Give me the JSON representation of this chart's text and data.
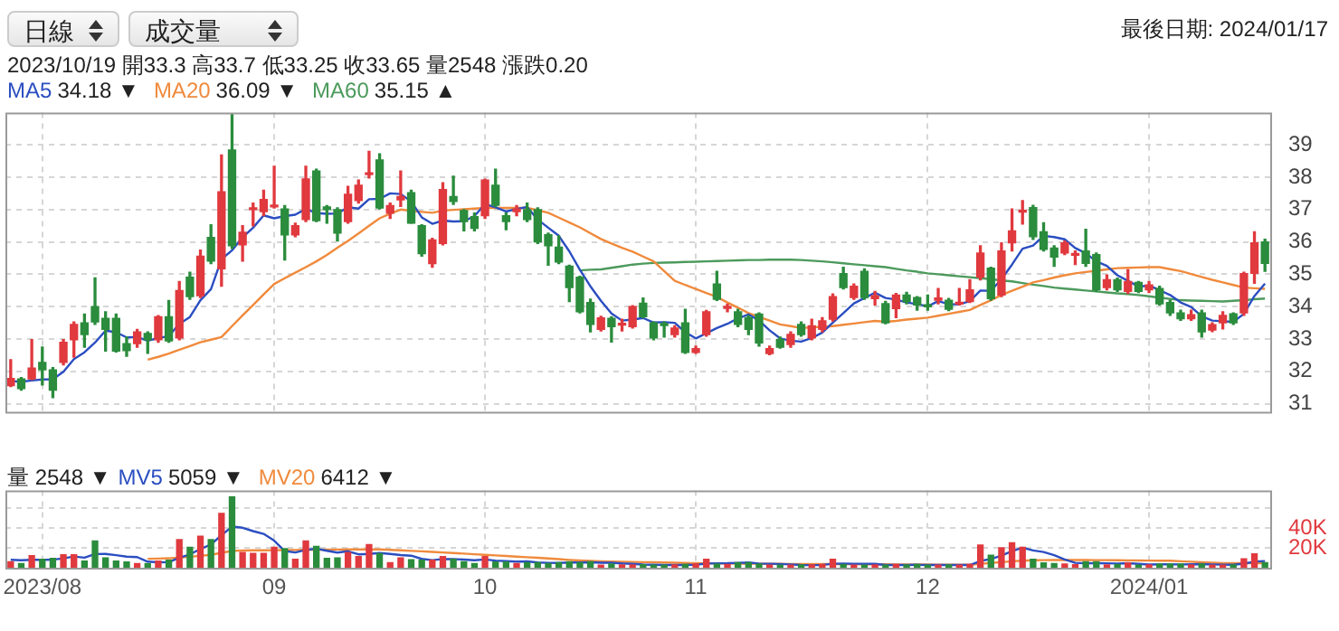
{
  "chart_data": [
    {
      "type": "candlestick",
      "categories": [
        null,
        null,
        null,
        "2023/08",
        null,
        null,
        null,
        null,
        null,
        null,
        null,
        null,
        null,
        null,
        null,
        null,
        null,
        null,
        null,
        null,
        null,
        null,
        null,
        null,
        null,
        "09",
        null,
        null,
        null,
        null,
        null,
        null,
        null,
        null,
        null,
        null,
        null,
        null,
        null,
        null,
        null,
        null,
        null,
        null,
        null,
        "10",
        null,
        null,
        null,
        null,
        null,
        null,
        null,
        null,
        null,
        null,
        null,
        null,
        null,
        null,
        null,
        null,
        null,
        null,
        null,
        "11",
        null,
        null,
        null,
        null,
        null,
        null,
        null,
        null,
        null,
        null,
        null,
        null,
        null,
        null,
        null,
        null,
        null,
        null,
        null,
        null,
        null,
        "12",
        null,
        null,
        null,
        null,
        null,
        null,
        null,
        null,
        null,
        null,
        null,
        null,
        null,
        null,
        null,
        null,
        null,
        null,
        null,
        null,
        "2024/01",
        null,
        null,
        null,
        null,
        null,
        null,
        null,
        null,
        null,
        null,
        null
      ],
      "ohlc": [
        [
          31.56,
          32.36,
          31.53,
          31.78
        ],
        [
          31.77,
          31.81,
          31.42,
          31.47
        ],
        [
          31.77,
          32.98,
          31.75,
          32.1
        ],
        [
          32.28,
          32.75,
          31.58,
          32.05
        ],
        [
          32.05,
          32.12,
          31.19,
          31.42
        ],
        [
          32.28,
          32.98,
          32.2,
          32.9
        ],
        [
          32.98,
          33.53,
          32.44,
          33.45
        ],
        [
          33.5,
          33.77,
          32.75,
          33.14
        ],
        [
          34.0,
          34.89,
          33.45,
          33.53
        ],
        [
          33.64,
          33.84,
          32.63,
          33.3
        ],
        [
          33.64,
          33.77,
          32.6,
          32.63
        ],
        [
          32.86,
          33.06,
          32.47,
          32.64
        ],
        [
          32.86,
          33.3,
          32.75,
          33.22
        ],
        [
          33.17,
          33.22,
          32.56,
          32.98
        ],
        [
          32.98,
          33.72,
          32.9,
          33.69
        ],
        [
          33.69,
          34.19,
          32.9,
          32.94
        ],
        [
          33.03,
          34.78,
          32.98,
          34.5
        ],
        [
          34.91,
          35.06,
          34.23,
          34.31
        ],
        [
          34.34,
          35.75,
          34.28,
          35.56
        ],
        [
          36.14,
          36.53,
          35.33,
          35.41
        ],
        [
          35.17,
          38.69,
          34.63,
          37.55
        ],
        [
          38.84,
          39.94,
          35.8,
          35.88
        ],
        [
          35.91,
          36.5,
          35.41,
          36.3
        ],
        [
          37.0,
          37.2,
          36.5,
          37.05
        ],
        [
          36.94,
          37.6,
          36.81,
          37.31
        ],
        [
          37.08,
          38.34,
          37.05,
          37.12
        ],
        [
          37.02,
          37.12,
          35.44,
          36.22
        ],
        [
          36.22,
          36.58,
          36.16,
          36.5
        ],
        [
          36.69,
          38.34,
          36.63,
          37.95
        ],
        [
          38.19,
          38.25,
          36.63,
          36.66
        ],
        [
          37.08,
          37.12,
          36.58,
          37.0
        ],
        [
          37.0,
          37.05,
          36.03,
          36.27
        ],
        [
          36.63,
          37.72,
          36.58,
          37.47
        ],
        [
          37.28,
          37.91,
          37.2,
          37.75
        ],
        [
          38.08,
          38.8,
          37.98,
          38.1
        ],
        [
          38.53,
          38.72,
          37.02,
          37.05
        ],
        [
          36.89,
          37.2,
          36.73,
          37.12
        ],
        [
          37.3,
          38.19,
          37.1,
          37.4
        ],
        [
          37.52,
          37.6,
          36.58,
          36.58
        ],
        [
          36.5,
          36.53,
          35.56,
          35.64
        ],
        [
          35.33,
          36.11,
          35.22,
          36.06
        ],
        [
          35.95,
          37.83,
          35.91,
          37.62
        ],
        [
          37.4,
          38.03,
          37.16,
          37.25
        ],
        [
          36.97,
          37.0,
          36.34,
          36.63
        ],
        [
          36.78,
          36.89,
          36.34,
          36.42
        ],
        [
          36.81,
          37.94,
          36.73,
          37.91
        ],
        [
          37.75,
          38.25,
          37.09,
          37.13
        ],
        [
          36.81,
          36.89,
          36.38,
          36.63
        ],
        [
          36.94,
          37.12,
          36.81,
          37.02
        ],
        [
          37.0,
          37.2,
          36.63,
          36.69
        ],
        [
          37.0,
          37.05,
          35.95,
          36.0
        ],
        [
          36.22,
          36.27,
          35.28,
          35.88
        ],
        [
          35.84,
          36.19,
          35.33,
          35.38
        ],
        [
          35.25,
          35.28,
          34.16,
          34.59
        ],
        [
          34.91,
          34.94,
          33.81,
          33.84
        ],
        [
          34.13,
          34.23,
          33.22,
          33.45
        ],
        [
          33.3,
          33.7,
          33.25,
          33.65
        ],
        [
          33.64,
          33.69,
          32.91,
          33.38
        ],
        [
          33.43,
          33.61,
          33.25,
          33.47
        ],
        [
          33.38,
          34.03,
          33.34,
          34.0
        ],
        [
          34.11,
          34.27,
          33.66,
          33.69
        ],
        [
          33.5,
          33.53,
          32.98,
          33.03
        ],
        [
          33.45,
          33.53,
          33.06,
          33.42
        ],
        [
          33.14,
          33.41,
          33.06,
          33.34
        ],
        [
          33.5,
          33.92,
          32.56,
          32.59
        ],
        [
          32.59,
          32.78,
          32.56,
          32.7
        ],
        [
          33.14,
          33.88,
          33.09,
          33.84
        ],
        [
          34.7,
          35.09,
          34.19,
          34.23
        ],
        [
          33.95,
          34.08,
          33.84,
          34.0
        ],
        [
          33.84,
          33.92,
          33.38,
          33.45
        ],
        [
          33.66,
          33.72,
          33.14,
          33.3
        ],
        [
          33.77,
          33.81,
          32.78,
          32.88
        ],
        [
          32.55,
          32.78,
          32.52,
          32.7
        ],
        [
          32.98,
          33.06,
          32.72,
          32.75
        ],
        [
          32.83,
          33.22,
          32.75,
          33.14
        ],
        [
          33.45,
          33.53,
          33.09,
          33.14
        ],
        [
          33.03,
          33.61,
          32.98,
          33.41
        ],
        [
          33.3,
          33.66,
          33.22,
          33.56
        ],
        [
          33.61,
          34.39,
          33.56,
          34.31
        ],
        [
          35.02,
          35.22,
          34.55,
          34.59
        ],
        [
          34.28,
          34.7,
          34.23,
          34.63
        ],
        [
          35.09,
          35.17,
          34.23,
          34.28
        ],
        [
          34.25,
          34.47,
          34.05,
          34.34
        ],
        [
          34.09,
          34.16,
          33.47,
          33.5
        ],
        [
          33.94,
          34.41,
          33.66,
          34.36
        ],
        [
          34.36,
          34.44,
          34.09,
          34.16
        ],
        [
          34.28,
          34.31,
          33.89,
          34.05
        ],
        [
          34.05,
          34.36,
          33.89,
          34.0
        ],
        [
          34.2,
          34.56,
          34.09,
          34.27
        ],
        [
          34.2,
          34.25,
          33.88,
          33.92
        ],
        [
          34.08,
          34.56,
          34.05,
          34.12
        ],
        [
          34.16,
          34.83,
          34.13,
          34.52
        ],
        [
          34.91,
          35.88,
          34.83,
          35.66
        ],
        [
          35.19,
          35.22,
          34.2,
          34.25
        ],
        [
          34.36,
          35.97,
          34.31,
          35.72
        ],
        [
          35.97,
          37.02,
          35.72,
          36.34
        ],
        [
          36.92,
          37.28,
          36.55,
          36.97
        ],
        [
          37.06,
          37.13,
          36.08,
          36.16
        ],
        [
          36.31,
          36.59,
          35.72,
          35.77
        ],
        [
          35.81,
          35.88,
          35.25,
          35.53
        ],
        [
          35.66,
          36.03,
          35.61,
          35.97
        ],
        [
          35.59,
          35.72,
          35.3,
          35.64
        ],
        [
          35.72,
          36.39,
          35.25,
          35.34
        ],
        [
          35.61,
          35.66,
          34.47,
          34.52
        ],
        [
          34.59,
          34.98,
          34.52,
          34.83
        ],
        [
          34.83,
          34.88,
          34.47,
          34.52
        ],
        [
          34.47,
          35.14,
          34.41,
          34.78
        ],
        [
          34.75,
          34.78,
          34.44,
          34.47
        ],
        [
          34.52,
          34.78,
          34.44,
          34.67
        ],
        [
          34.56,
          34.63,
          34.05,
          34.09
        ],
        [
          34.13,
          34.2,
          33.73,
          33.81
        ],
        [
          33.81,
          33.89,
          33.58,
          33.63
        ],
        [
          33.63,
          33.89,
          33.58,
          33.75
        ],
        [
          33.81,
          33.89,
          33.06,
          33.22
        ],
        [
          33.28,
          33.5,
          33.23,
          33.44
        ],
        [
          33.5,
          33.84,
          33.31,
          33.73
        ],
        [
          33.78,
          33.81,
          33.45,
          33.5
        ],
        [
          33.81,
          35.06,
          33.73,
          35.02
        ],
        [
          35.03,
          36.31,
          34.72,
          35.97
        ],
        [
          36.0,
          36.08,
          35.09,
          35.34
        ]
      ],
      "colors": [
        "#e0393e",
        "#2a8c3c",
        "#e0393e",
        "#2a8c3c",
        "#2a8c3c",
        "#e0393e",
        "#e0393e",
        "#2a8c3c",
        "#2a8c3c",
        "#2a8c3c",
        "#2a8c3c",
        "#2a8c3c",
        "#e0393e",
        "#2a8c3c",
        "#e0393e",
        "#2a8c3c",
        "#e0393e",
        "#2a8c3c",
        "#e0393e",
        "#2a8c3c",
        "#e0393e",
        "#2a8c3c",
        "#e0393e",
        "#e0393e",
        "#e0393e",
        "#e0393e",
        "#2a8c3c",
        "#e0393e",
        "#e0393e",
        "#2a8c3c",
        "#2a8c3c",
        "#2a8c3c",
        "#e0393e",
        "#e0393e",
        "#e0393e",
        "#2a8c3c",
        "#e0393e",
        "#e0393e",
        "#2a8c3c",
        "#2a8c3c",
        "#e0393e",
        "#e0393e",
        "#2a8c3c",
        "#2a8c3c",
        "#2a8c3c",
        "#e0393e",
        "#2a8c3c",
        "#2a8c3c",
        "#e0393e",
        "#2a8c3c",
        "#2a8c3c",
        "#2a8c3c",
        "#2a8c3c",
        "#2a8c3c",
        "#2a8c3c",
        "#2a8c3c",
        "#e0393e",
        "#2a8c3c",
        "#e0393e",
        "#e0393e",
        "#2a8c3c",
        "#2a8c3c",
        "#2a8c3c",
        "#e0393e",
        "#2a8c3c",
        "#e0393e",
        "#e0393e",
        "#2a8c3c",
        "#e0393e",
        "#2a8c3c",
        "#2a8c3c",
        "#2a8c3c",
        "#e0393e",
        "#2a8c3c",
        "#e0393e",
        "#2a8c3c",
        "#e0393e",
        "#e0393e",
        "#e0393e",
        "#2a8c3c",
        "#e0393e",
        "#2a8c3c",
        "#e0393e",
        "#2a8c3c",
        "#e0393e",
        "#2a8c3c",
        "#2a8c3c",
        "#2a8c3c",
        "#e0393e",
        "#2a8c3c",
        "#e0393e",
        "#e0393e",
        "#e0393e",
        "#2a8c3c",
        "#e0393e",
        "#e0393e",
        "#e0393e",
        "#2a8c3c",
        "#2a8c3c",
        "#2a8c3c",
        "#e0393e",
        "#e0393e",
        "#2a8c3c",
        "#2a8c3c",
        "#e0393e",
        "#2a8c3c",
        "#e0393e",
        "#2a8c3c",
        "#e0393e",
        "#2a8c3c",
        "#2a8c3c",
        "#2a8c3c",
        "#e0393e",
        "#2a8c3c",
        "#e0393e",
        "#e0393e",
        "#2a8c3c",
        "#e0393e",
        "#e0393e",
        "#2a8c3c"
      ],
      "series": [
        {
          "name": "MA5",
          "type": "line",
          "color": "#2b4ec1",
          "values": [
            31.7,
            31.68,
            31.72,
            31.75,
            31.76,
            31.99,
            32.38,
            32.59,
            32.89,
            33.26,
            33.21,
            33.05,
            33.06,
            32.95,
            33.03,
            33.09,
            33.47,
            33.68,
            34.2,
            34.54,
            35.47,
            35.74,
            36.14,
            36.44,
            36.82,
            36.73,
            36.8,
            36.84,
            37.02,
            36.89,
            36.87,
            36.88,
            37.07,
            37.03,
            37.32,
            37.33,
            37.5,
            37.48,
            37.25,
            36.76,
            36.56,
            36.66,
            36.63,
            36.64,
            36.8,
            37.17,
            37.07,
            36.94,
            37.02,
            37.08,
            36.69,
            36.44,
            36.19,
            35.71,
            35.14,
            34.63,
            34.18,
            33.79,
            33.57,
            33.6,
            33.65,
            33.51,
            33.52,
            33.5,
            33.21,
            33.02,
            33.18,
            33.34,
            33.47,
            33.64,
            33.76,
            33.57,
            33.27,
            33.02,
            32.95,
            32.92,
            33.03,
            33.2,
            33.51,
            33.8,
            34.1,
            34.27,
            34.43,
            34.27,
            34.22,
            34.13,
            34.08,
            34.01,
            34.17,
            34.08,
            34.07,
            34.17,
            34.5,
            34.49,
            34.85,
            35.3,
            35.79,
            35.89,
            36.19,
            36.15,
            36.08,
            35.81,
            35.65,
            35.4,
            35.26,
            34.97,
            34.8,
            34.62,
            34.65,
            34.51,
            34.36,
            34.13,
            33.99,
            33.7,
            33.57,
            33.55,
            33.53,
            33.78,
            34.33,
            34.71
          ]
        },
        {
          "name": "MA20",
          "type": "line",
          "color": "#f08a3c",
          "values": [
            null,
            null,
            null,
            null,
            null,
            null,
            null,
            null,
            null,
            null,
            null,
            null,
            null,
            32.36,
            32.45,
            32.55,
            32.67,
            32.78,
            32.9,
            32.98,
            33.06,
            33.4,
            33.73,
            34.05,
            34.38,
            34.7,
            34.88,
            35.05,
            35.22,
            35.4,
            35.6,
            35.82,
            36.03,
            36.26,
            36.5,
            36.73,
            36.87,
            37.0,
            36.96,
            36.93,
            36.9,
            36.97,
            36.99,
            37.01,
            37.03,
            37.05,
            37.05,
            37.05,
            37.05,
            37.05,
            36.98,
            36.9,
            36.75,
            36.6,
            36.45,
            36.27,
            36.09,
            35.95,
            35.82,
            35.7,
            35.55,
            35.4,
            35.1,
            34.8,
            34.67,
            34.55,
            34.42,
            34.3,
            34.13,
            33.97,
            33.8,
            33.68,
            33.57,
            33.45,
            33.4,
            33.34,
            33.36,
            33.38,
            33.4,
            33.44,
            33.48,
            33.52,
            33.56,
            33.53,
            33.56,
            33.6,
            33.63,
            33.66,
            33.72,
            33.78,
            33.84,
            33.9,
            34.05,
            34.2,
            34.36,
            34.49,
            34.62,
            34.75,
            34.82,
            34.9,
            34.97,
            35.03,
            35.07,
            35.11,
            35.15,
            35.19,
            35.2,
            35.21,
            35.22,
            35.22,
            35.16,
            35.1,
            35.01,
            34.92,
            34.83,
            34.75,
            34.67,
            34.59,
            34.57,
            34.55
          ]
        },
        {
          "name": "MA60",
          "type": "line",
          "color": "#4c9a5c",
          "values": [
            null,
            null,
            null,
            null,
            null,
            null,
            null,
            null,
            null,
            null,
            null,
            null,
            null,
            null,
            null,
            null,
            null,
            null,
            null,
            null,
            null,
            null,
            null,
            null,
            null,
            null,
            null,
            null,
            null,
            null,
            null,
            null,
            null,
            null,
            null,
            null,
            null,
            null,
            null,
            null,
            null,
            null,
            null,
            null,
            null,
            null,
            null,
            null,
            null,
            null,
            null,
            null,
            null,
            null,
            35.12,
            35.14,
            35.15,
            35.2,
            35.25,
            35.3,
            35.33,
            35.35,
            35.36,
            35.37,
            35.38,
            35.39,
            35.4,
            35.41,
            35.42,
            35.43,
            35.44,
            35.44,
            35.45,
            35.45,
            35.45,
            35.44,
            35.42,
            35.4,
            35.37,
            35.34,
            35.31,
            35.28,
            35.25,
            35.22,
            35.17,
            35.12,
            35.08,
            35.03,
            35.0,
            34.97,
            34.94,
            34.91,
            34.88,
            34.85,
            34.81,
            34.78,
            34.73,
            34.68,
            34.64,
            34.59,
            34.56,
            34.53,
            34.5,
            34.47,
            34.44,
            34.41,
            34.39,
            34.36,
            34.32,
            34.28,
            34.24,
            34.2,
            34.19,
            34.18,
            34.17,
            34.16,
            34.18,
            34.2,
            34.23,
            34.25
          ]
        }
      ],
      "ylim": [
        30.75,
        40
      ],
      "yticks": [
        31,
        32,
        33,
        34,
        35,
        36,
        37,
        38,
        39
      ],
      "grid": true,
      "tick_labels": "y",
      "legend": "top left",
      "marker": "none",
      "annotations": [
        "日線",
        "成交量",
        "最後日期: 2024/01/17",
        "2023/10/19 開33.3 高33.7 低33.25 收33.65 量2548 漲跌0.20",
        "34.18 ▼",
        "36.09 ▼",
        "35.15 ▲"
      ]
    },
    {
      "type": "bar",
      "categories": [
        null,
        null,
        null,
        "2023/08",
        null,
        null,
        null,
        null,
        null,
        null,
        null,
        null,
        null,
        null,
        null,
        null,
        null,
        null,
        null,
        null,
        null,
        null,
        null,
        null,
        null,
        "09",
        null,
        null,
        null,
        null,
        null,
        null,
        null,
        null,
        null,
        null,
        null,
        null,
        null,
        null,
        null,
        null,
        null,
        null,
        null,
        "10",
        null,
        null,
        null,
        null,
        null,
        null,
        null,
        null,
        null,
        null,
        null,
        null,
        null,
        null,
        null,
        null,
        null,
        null,
        null,
        "11",
        null,
        null,
        null,
        null,
        null,
        null,
        null,
        null,
        null,
        null,
        null,
        null,
        null,
        null,
        null,
        null,
        null,
        null,
        null,
        null,
        null,
        "12",
        null,
        null,
        null,
        null,
        null,
        null,
        null,
        null,
        null,
        null,
        null,
        null,
        null,
        null,
        null,
        null,
        null,
        null,
        null,
        null,
        "2024/01",
        null,
        null,
        null,
        null,
        null,
        null,
        null,
        null,
        null,
        null,
        null
      ],
      "series": [
        {
          "values": [
            6100,
            4200,
            12200,
            8500,
            9400,
            13100,
            13100,
            6600,
            27000,
            9900,
            6600,
            5700,
            4200,
            4200,
            6600,
            7500,
            28400,
            20500,
            31700,
            28400,
            54800,
            71400,
            15400,
            14500,
            14500,
            20500,
            19200,
            8500,
            27000,
            21500,
            9400,
            9900,
            15400,
            11300,
            23400,
            14100,
            5200,
            9900,
            8000,
            7500,
            7500,
            11300,
            8500,
            6100,
            4200,
            11300,
            5700,
            5700,
            4200,
            5200,
            5200,
            4200,
            5200,
            6100,
            5200,
            6100,
            2548,
            3800,
            2800,
            2800,
            3000,
            2500,
            2500,
            2800,
            3200,
            3800,
            8500,
            3800,
            3200,
            5200,
            5200,
            3800,
            2500,
            2500,
            2500,
            2800,
            2800,
            3200,
            8500,
            3200,
            2500,
            2500,
            2800,
            2500,
            3200,
            2800,
            3200,
            2500,
            2500,
            2800,
            2500,
            3200,
            22800,
            12500,
            20100,
            25200,
            20500,
            8500,
            4800,
            4200,
            3800,
            3000,
            6100,
            6100,
            2800,
            3200,
            4800,
            2500,
            2800,
            3800,
            3800,
            3800,
            2800,
            3800,
            2500,
            2500,
            2800,
            8900,
            14000,
            5200
          ],
          "colors": [
            "#e0393e",
            "#2a8c3c",
            "#e0393e",
            "#2a8c3c",
            "#2a8c3c",
            "#e0393e",
            "#e0393e",
            "#2a8c3c",
            "#2a8c3c",
            "#2a8c3c",
            "#2a8c3c",
            "#2a8c3c",
            "#e0393e",
            "#2a8c3c",
            "#e0393e",
            "#2a8c3c",
            "#e0393e",
            "#2a8c3c",
            "#e0393e",
            "#2a8c3c",
            "#e0393e",
            "#2a8c3c",
            "#e0393e",
            "#e0393e",
            "#e0393e",
            "#e0393e",
            "#2a8c3c",
            "#e0393e",
            "#e0393e",
            "#2a8c3c",
            "#2a8c3c",
            "#2a8c3c",
            "#e0393e",
            "#e0393e",
            "#e0393e",
            "#2a8c3c",
            "#e0393e",
            "#e0393e",
            "#2a8c3c",
            "#2a8c3c",
            "#e0393e",
            "#e0393e",
            "#2a8c3c",
            "#2a8c3c",
            "#2a8c3c",
            "#e0393e",
            "#2a8c3c",
            "#2a8c3c",
            "#e0393e",
            "#2a8c3c",
            "#2a8c3c",
            "#2a8c3c",
            "#2a8c3c",
            "#2a8c3c",
            "#2a8c3c",
            "#2a8c3c",
            "#e0393e",
            "#2a8c3c",
            "#e0393e",
            "#e0393e",
            "#2a8c3c",
            "#2a8c3c",
            "#2a8c3c",
            "#e0393e",
            "#2a8c3c",
            "#e0393e",
            "#e0393e",
            "#2a8c3c",
            "#e0393e",
            "#2a8c3c",
            "#2a8c3c",
            "#2a8c3c",
            "#e0393e",
            "#2a8c3c",
            "#e0393e",
            "#2a8c3c",
            "#e0393e",
            "#e0393e",
            "#e0393e",
            "#2a8c3c",
            "#e0393e",
            "#2a8c3c",
            "#e0393e",
            "#2a8c3c",
            "#e0393e",
            "#2a8c3c",
            "#2a8c3c",
            "#2a8c3c",
            "#e0393e",
            "#2a8c3c",
            "#e0393e",
            "#e0393e",
            "#e0393e",
            "#2a8c3c",
            "#e0393e",
            "#e0393e",
            "#e0393e",
            "#2a8c3c",
            "#2a8c3c",
            "#2a8c3c",
            "#e0393e",
            "#e0393e",
            "#2a8c3c",
            "#2a8c3c",
            "#e0393e",
            "#2a8c3c",
            "#e0393e",
            "#2a8c3c",
            "#e0393e",
            "#2a8c3c",
            "#2a8c3c",
            "#2a8c3c",
            "#e0393e",
            "#2a8c3c",
            "#e0393e",
            "#e0393e",
            "#2a8c3c",
            "#e0393e",
            "#e0393e",
            "#2a8c3c"
          ]
        },
        {
          "name": "MV5",
          "type": "line",
          "color": "#2b4ec1",
          "values": [
            8000,
            7500,
            8000,
            8000,
            8100,
            9500,
            11300,
            10100,
            13800,
            13900,
            12600,
            11200,
            10700,
            6100,
            5500,
            5600,
            10200,
            13400,
            18900,
            23300,
            32800,
            41400,
            40300,
            36900,
            34100,
            27300,
            16800,
            15400,
            17900,
            19300,
            17100,
            15300,
            16600,
            13500,
            13900,
            14800,
            13900,
            12800,
            12100,
            8900,
            7600,
            8800,
            8600,
            8200,
            7500,
            8300,
            7200,
            6600,
            6200,
            6400,
            5200,
            4900,
            4800,
            5200,
            5200,
            5400,
            5059,
            5000,
            4300,
            3900,
            3200,
            3000,
            2700,
            2700,
            2800,
            3000,
            4200,
            4400,
            4500,
            4900,
            5200,
            4200,
            4000,
            3800,
            3300,
            2800,
            2600,
            2800,
            4000,
            4100,
            4000,
            4000,
            3900,
            2700,
            2700,
            2800,
            2900,
            2800,
            2800,
            2800,
            2700,
            2700,
            6800,
            8800,
            12200,
            16800,
            20200,
            17400,
            15800,
            12600,
            8400,
            4900,
            4400,
            4600,
            4400,
            4200,
            4600,
            3900,
            3200,
            3400,
            3500,
            3300,
            3400,
            3600,
            3300,
            3100,
            2900,
            4100,
            6100,
            6700
          ]
        },
        {
          "name": "MV20",
          "type": "line",
          "color": "#f08a3c",
          "values": [
            null,
            null,
            null,
            null,
            null,
            null,
            null,
            null,
            null,
            null,
            null,
            null,
            null,
            9000,
            9200,
            9500,
            10200,
            11000,
            12000,
            13000,
            15000,
            17000,
            17300,
            17500,
            17600,
            17700,
            17800,
            17900,
            18000,
            18100,
            18200,
            18300,
            18400,
            18500,
            18500,
            18500,
            18000,
            17500,
            17000,
            16500,
            16000,
            15400,
            14800,
            14200,
            13600,
            13000,
            12400,
            11800,
            11200,
            10600,
            10000,
            9300,
            8600,
            7900,
            7300,
            6850,
            6412,
            6200,
            6000,
            5800,
            5600,
            5400,
            5200,
            5000,
            4800,
            4500,
            4400,
            4300,
            4200,
            4100,
            4000,
            3950,
            3900,
            3850,
            3800,
            3750,
            3700,
            3650,
            3600,
            3550,
            3500,
            3450,
            3400,
            3350,
            3300,
            3250,
            3200,
            3150,
            3100,
            3050,
            3000,
            3000,
            4000,
            4800,
            5600,
            6500,
            7000,
            7500,
            7600,
            7700,
            7800,
            7700,
            7700,
            7600,
            7600,
            7500,
            7400,
            7300,
            7200,
            7100,
            7000,
            6500,
            6000,
            5500,
            5000,
            4500,
            4500,
            4500,
            4500,
            4500
          ]
        }
      ],
      "ylim": [
        0,
        78000
      ],
      "yticks": [
        {
          "value": 20000,
          "label": "20K"
        },
        {
          "value": 40000,
          "label": "40K"
        },
        {
          "value": 60000,
          "label": null
        }
      ],
      "grid": true,
      "legend": "top left",
      "marker": "none",
      "annotations": [
        "量 2548 ▼",
        "5059 ▼",
        "6412 ▼"
      ]
    }
  ]
}
